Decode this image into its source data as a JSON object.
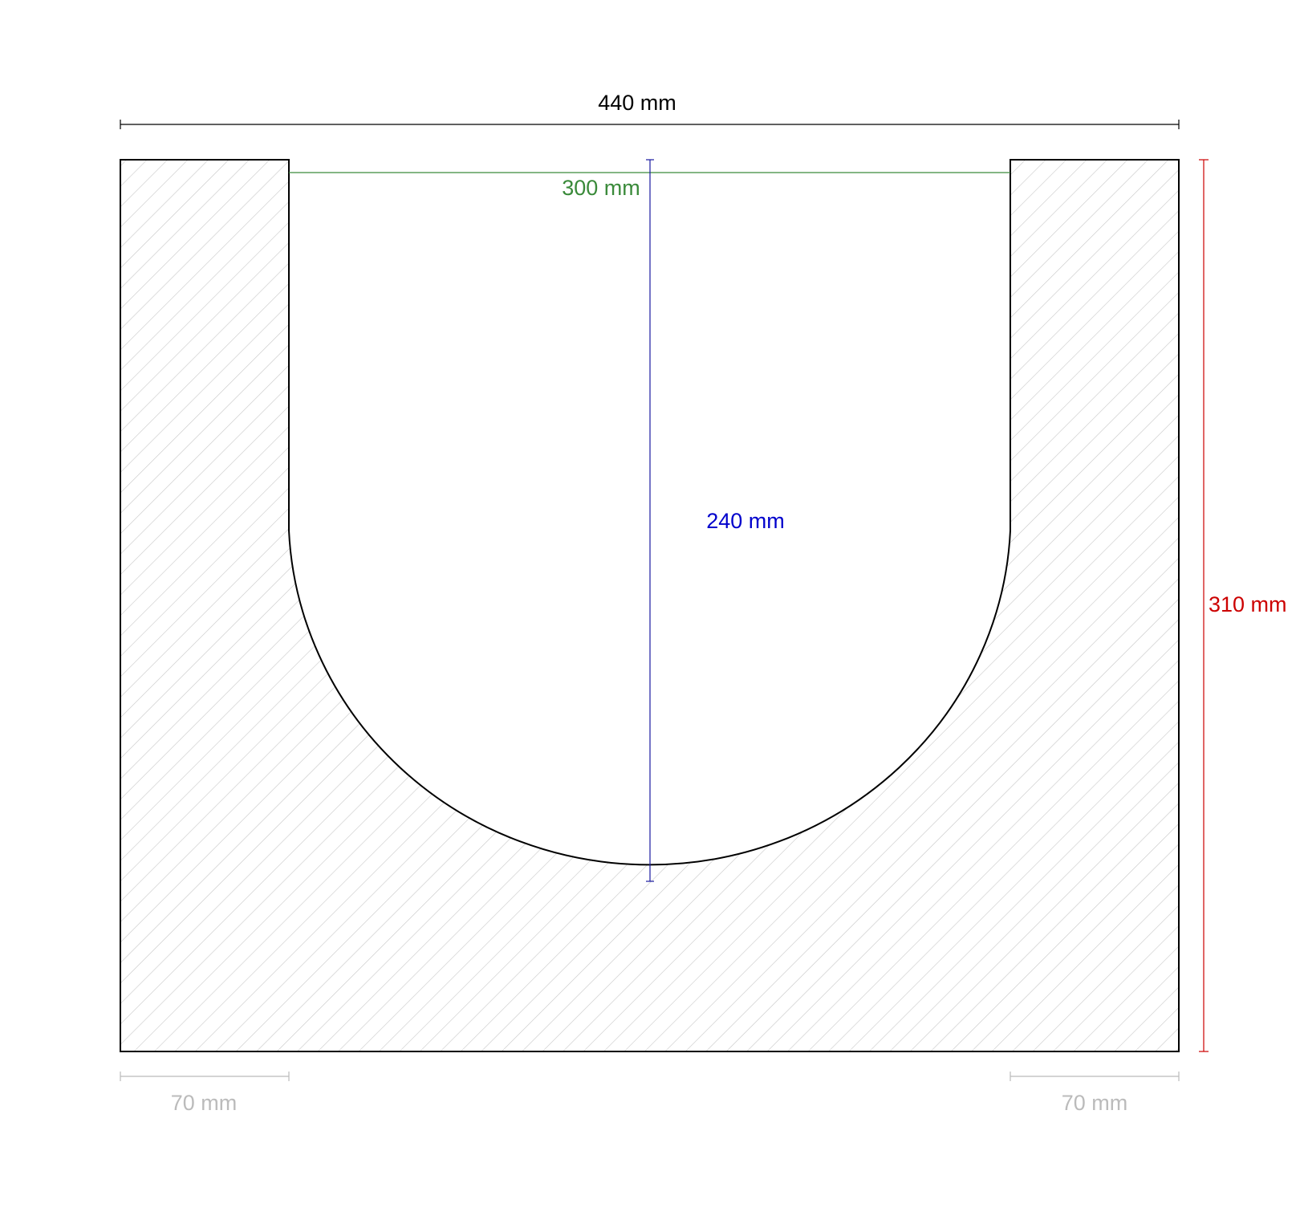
{
  "dimensions": {
    "overall_width": {
      "label": "440 mm"
    },
    "opening_width": {
      "label": "300 mm"
    },
    "channel_depth": {
      "label": "240 mm"
    },
    "overall_height": {
      "label": "310 mm"
    },
    "left_wall": {
      "label": "70 mm"
    },
    "right_wall": {
      "label": "70 mm"
    }
  }
}
